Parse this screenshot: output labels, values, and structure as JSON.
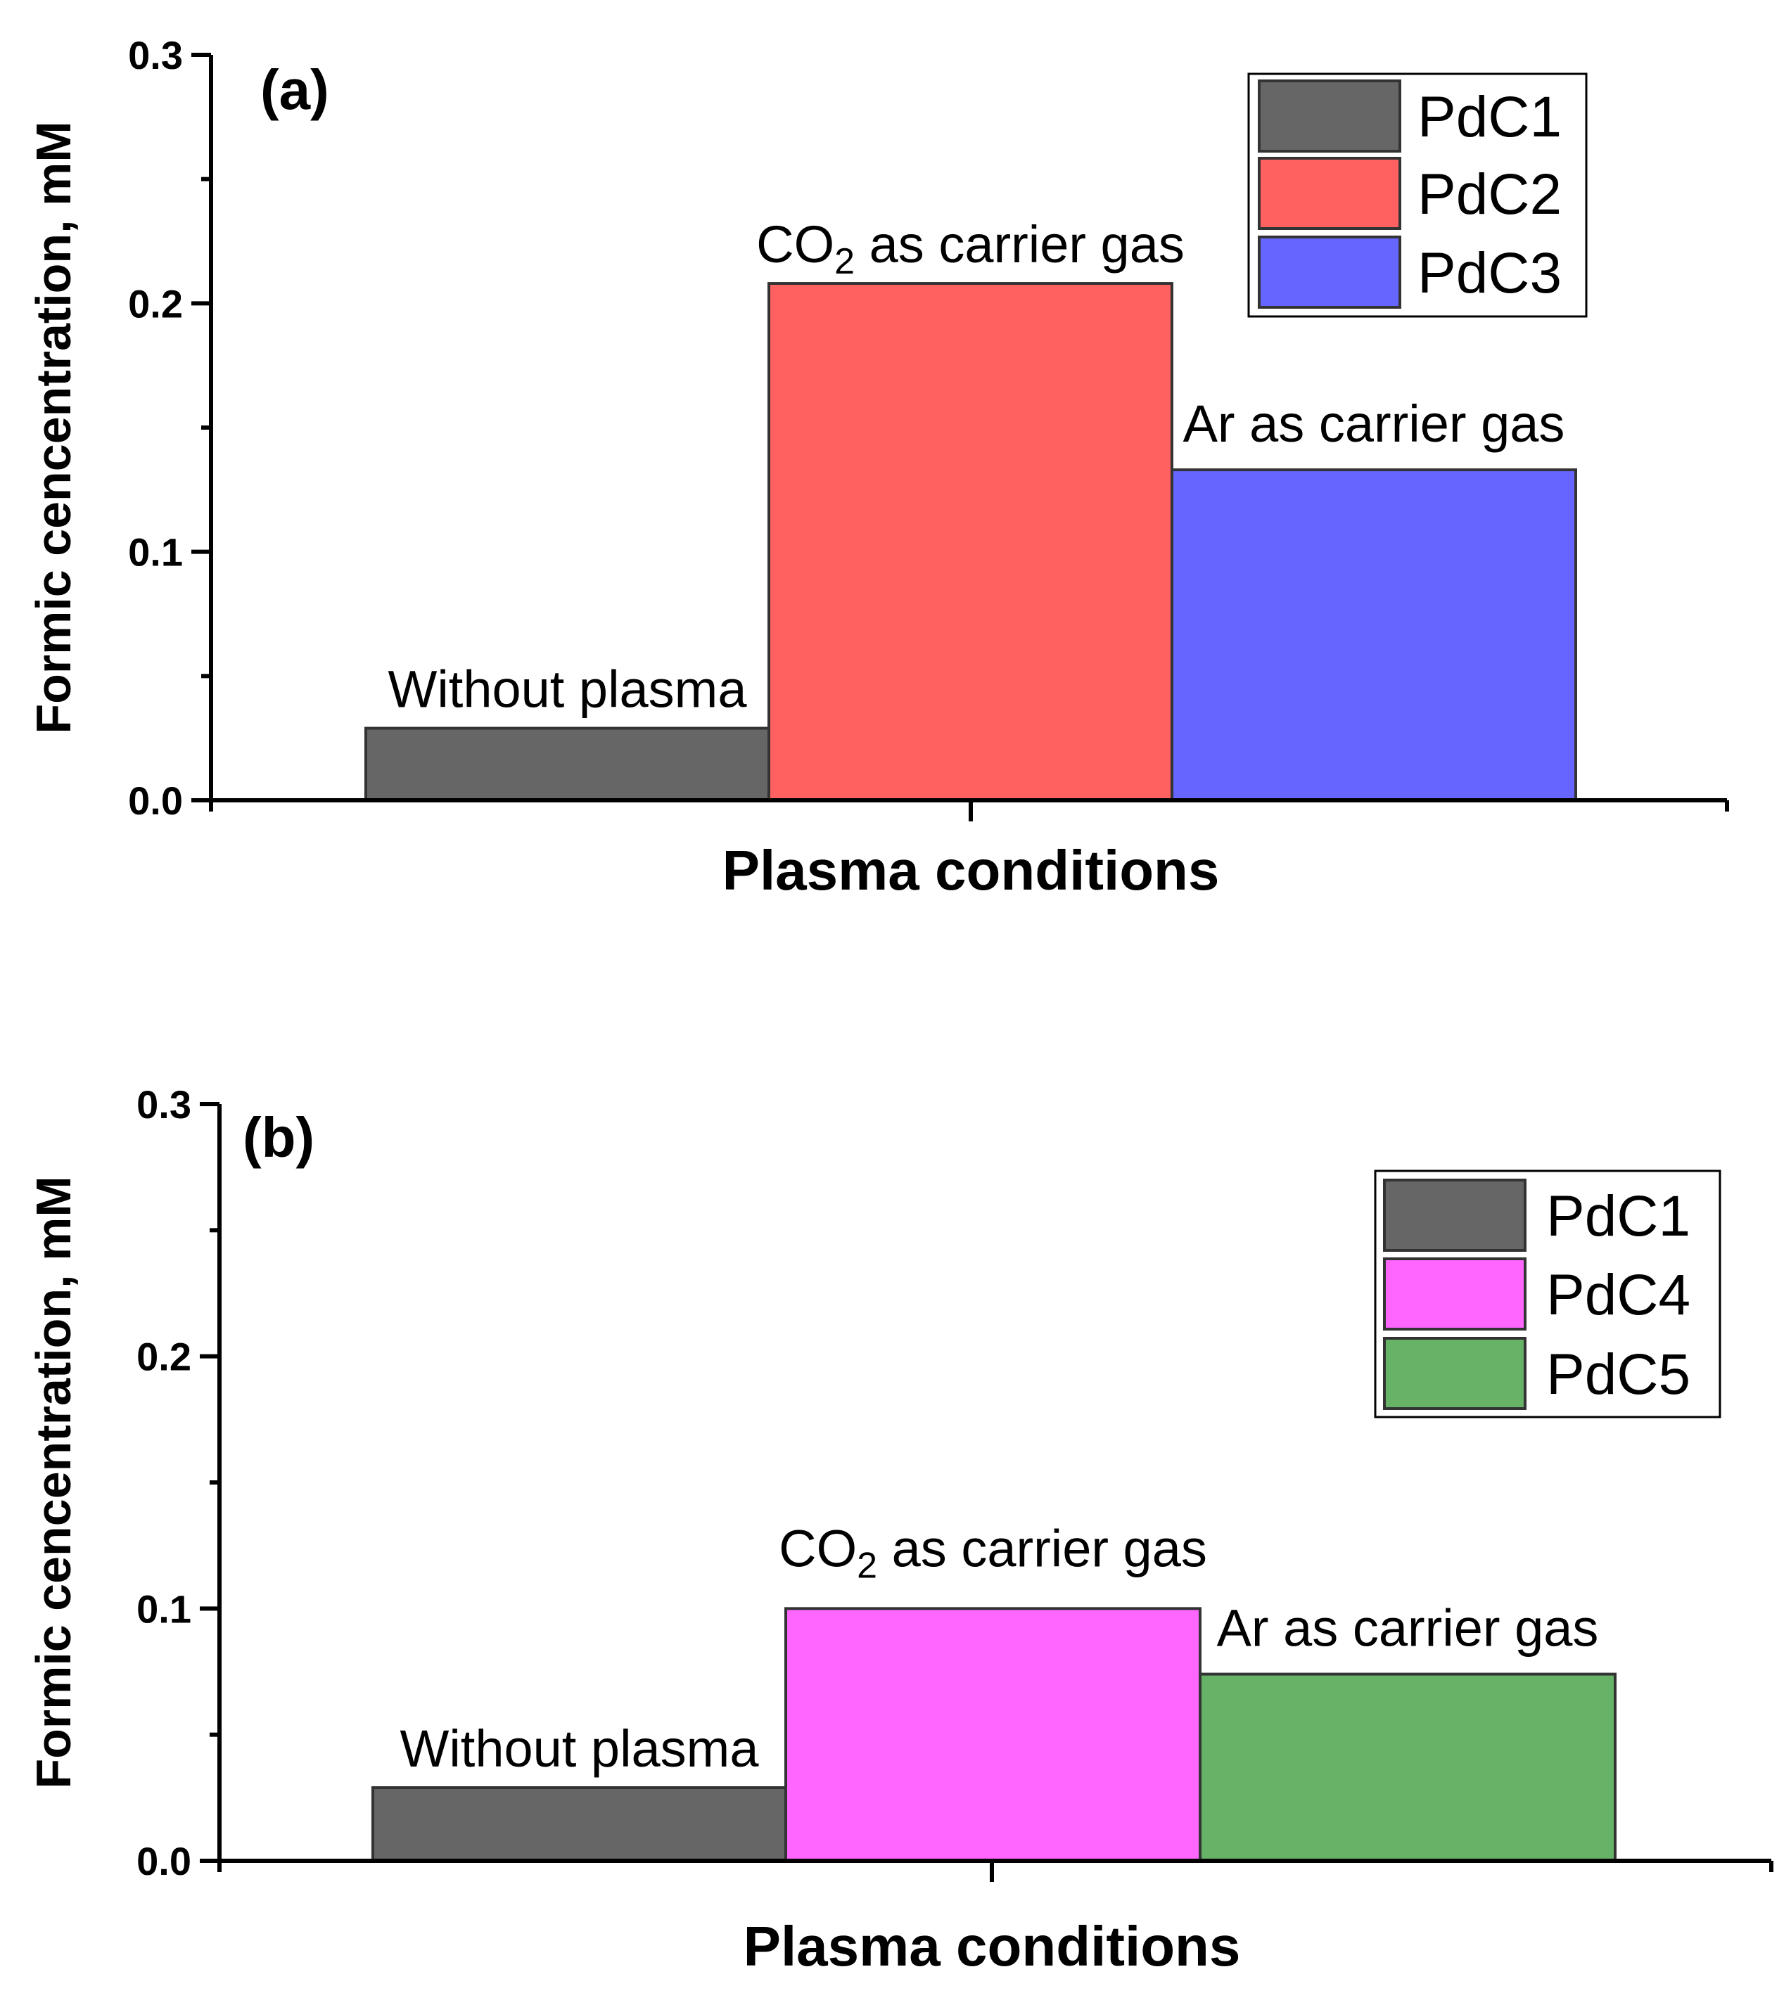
{
  "chart_data": [
    {
      "type": "bar",
      "panel_label": "(a)",
      "xlabel": "Plasma conditions",
      "ylabel": "Formic cencentration, mM",
      "ylim": [
        0,
        0.3
      ],
      "yticks": [
        "0.0",
        "0.1",
        "0.2",
        "0.3"
      ],
      "series": [
        {
          "name": "PdC1",
          "value": 0.029,
          "color": "#666666",
          "annotation": "Without plasma"
        },
        {
          "name": "PdC2",
          "value": 0.208,
          "color": "#ff6161",
          "annotation_main": "CO",
          "annotation_sub": "2",
          "annotation_rest": " as carrier gas"
        },
        {
          "name": "PdC3",
          "value": 0.133,
          "color": "#6666ff",
          "annotation": "Ar as carrier gas"
        }
      ],
      "legend": [
        "PdC1",
        "PdC2",
        "PdC3"
      ]
    },
    {
      "type": "bar",
      "panel_label": "(b)",
      "xlabel": "Plasma conditions",
      "ylabel": "Formic cencentration, mM",
      "ylim": [
        0,
        0.3
      ],
      "yticks": [
        "0.0",
        "0.1",
        "0.2",
        "0.3"
      ],
      "series": [
        {
          "name": "PdC1",
          "value": 0.029,
          "color": "#666666",
          "annotation": "Without plasma"
        },
        {
          "name": "PdC4",
          "value": 0.1,
          "color": "#ff66ff",
          "annotation_main": "CO",
          "annotation_sub": "2",
          "annotation_rest": " as carrier gas"
        },
        {
          "name": "PdC5",
          "value": 0.074,
          "color": "#66b266",
          "annotation": "Ar as carrier gas"
        }
      ],
      "legend": [
        "PdC1",
        "PdC4",
        "PdC5"
      ]
    }
  ]
}
